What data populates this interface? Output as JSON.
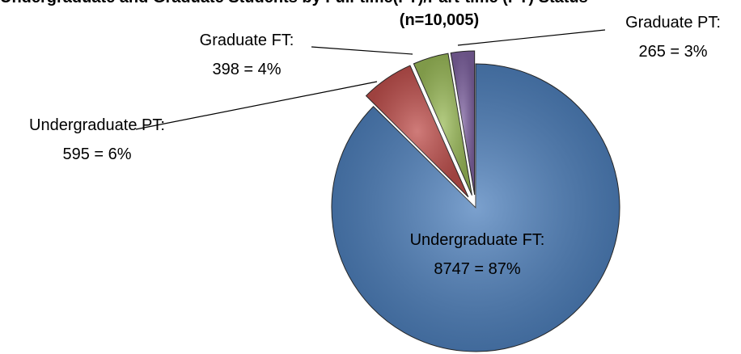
{
  "chart_data": {
    "type": "pie",
    "title": "Undergraduate and Graduate Students by Full-time(FT)/Part-time (PT) Status",
    "subtitle": "(n=10,005)",
    "categories": [
      "Undergraduate FT:",
      "Undergraduate PT:",
      "Graduate FT:",
      "Graduate PT:"
    ],
    "values": [
      8747,
      595,
      398,
      265
    ],
    "value_labels": [
      "8747 = 87%",
      "595 = 6%",
      "398 = 4%",
      "265 = 3%"
    ],
    "colors": [
      "#4f81bd",
      "#c0504d",
      "#9bbb59",
      "#8064a2"
    ]
  }
}
